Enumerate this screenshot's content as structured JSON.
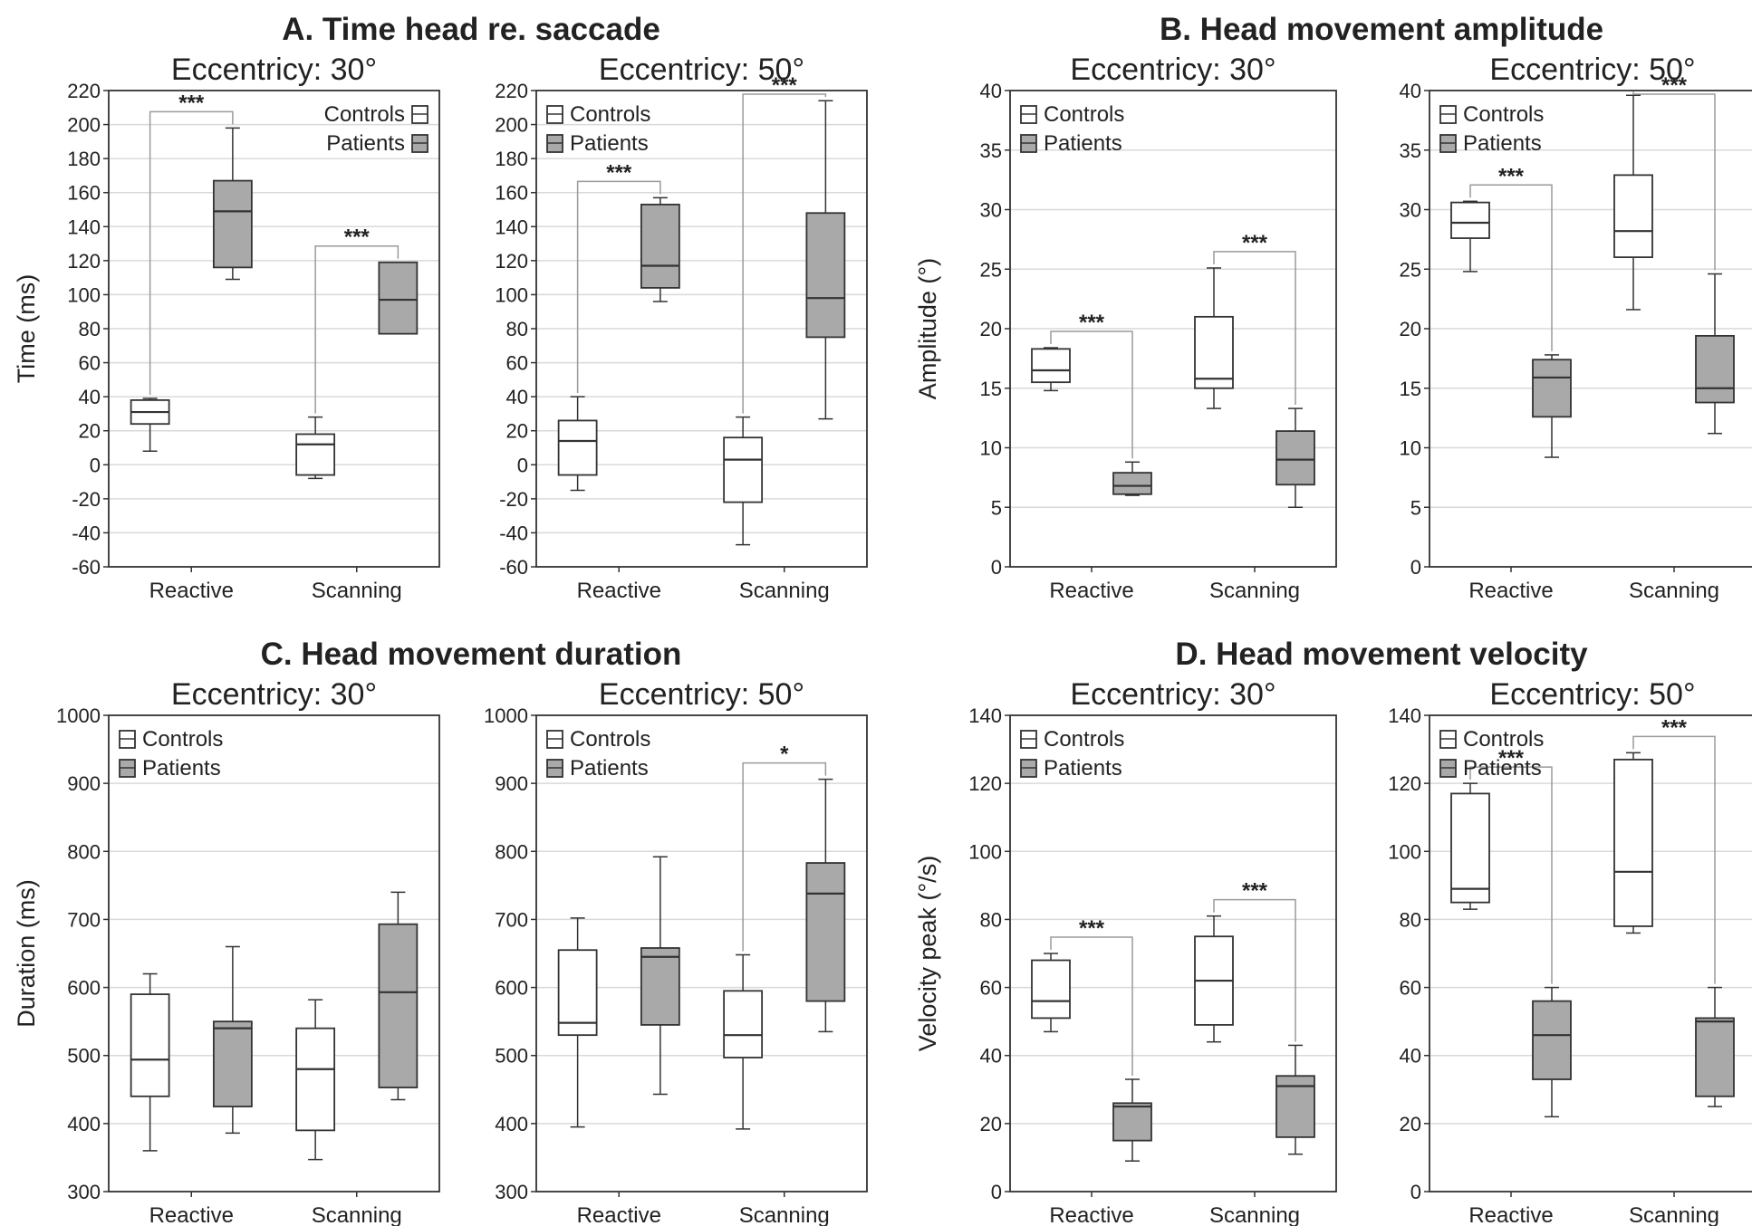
{
  "colors": {
    "controls_fill": "#ffffff",
    "patients_fill": "#a9a9a9",
    "grid": "#d9d9d9",
    "stroke": "#333333",
    "bracket": "#9a9a9a"
  },
  "legend_labels": {
    "controls": "Controls",
    "patients": "Patients"
  },
  "panel_titles": {
    "A": "A. Time head re. saccade",
    "B": "B. Head movement amplitude",
    "C": "C. Head movement duration",
    "D": "D. Head movement velocity"
  },
  "chart_data": [
    {
      "type": "box",
      "panel": "A",
      "subtitle": "Eccentricy: 30°",
      "ylabel": "Time (ms)",
      "ylim": [
        -60,
        220
      ],
      "yticks": [
        -60,
        -40,
        -20,
        0,
        20,
        40,
        60,
        80,
        100,
        120,
        140,
        160,
        180,
        200,
        220
      ],
      "categories": [
        "Reactive",
        "Scanning"
      ],
      "grid": true,
      "legend_position": "top-right",
      "series": [
        {
          "name": "Controls",
          "boxes": [
            [
              8,
              24,
              31,
              38,
              39
            ],
            [
              -8,
              -6,
              12,
              18,
              28
            ]
          ]
        },
        {
          "name": "Patients",
          "boxes": [
            [
              109,
              116,
              149,
              167,
              198
            ],
            [
              77,
              77,
              97,
              119,
              119
            ]
          ]
        }
      ],
      "significance": [
        {
          "category": "Reactive",
          "label": "***"
        },
        {
          "category": "Scanning",
          "label": "***"
        }
      ]
    },
    {
      "type": "box",
      "panel": "A",
      "subtitle": "Eccentricy: 50°",
      "ylabel": "",
      "ylim": [
        -60,
        220
      ],
      "yticks": [
        -60,
        -40,
        -20,
        0,
        20,
        40,
        60,
        80,
        100,
        120,
        140,
        160,
        180,
        200,
        220
      ],
      "categories": [
        "Reactive",
        "Scanning"
      ],
      "grid": true,
      "legend_position": "top-left",
      "series": [
        {
          "name": "Controls",
          "boxes": [
            [
              -15,
              -6,
              14,
              26,
              40
            ],
            [
              -47,
              -22,
              3,
              16,
              28
            ]
          ]
        },
        {
          "name": "Patients",
          "boxes": [
            [
              96,
              104,
              117,
              153,
              157
            ],
            [
              27,
              75,
              98,
              148,
              214
            ]
          ]
        }
      ],
      "significance": [
        {
          "category": "Reactive",
          "label": "***"
        },
        {
          "category": "Scanning",
          "label": "***"
        }
      ]
    },
    {
      "type": "box",
      "panel": "B",
      "subtitle": "Eccentricy: 30°",
      "ylabel": "Amplitude (°)",
      "ylim": [
        0,
        40
      ],
      "yticks": [
        0,
        5,
        10,
        15,
        20,
        25,
        30,
        35,
        40
      ],
      "categories": [
        "Reactive",
        "Scanning"
      ],
      "grid": true,
      "legend_position": "top-left",
      "series": [
        {
          "name": "Controls",
          "boxes": [
            [
              14.8,
              15.5,
              16.5,
              18.3,
              18.4
            ],
            [
              13.3,
              15,
              15.8,
              21,
              25.1
            ]
          ]
        },
        {
          "name": "Patients",
          "boxes": [
            [
              6,
              6.1,
              6.8,
              7.9,
              8.8
            ],
            [
              5,
              6.9,
              9,
              11.4,
              13.3
            ]
          ]
        }
      ],
      "significance": [
        {
          "category": "Reactive",
          "label": "***"
        },
        {
          "category": "Scanning",
          "label": "***"
        }
      ]
    },
    {
      "type": "box",
      "panel": "B",
      "subtitle": "Eccentricy: 50°",
      "ylabel": "",
      "ylim": [
        0,
        40
      ],
      "yticks": [
        0,
        5,
        10,
        15,
        20,
        25,
        30,
        35,
        40
      ],
      "categories": [
        "Reactive",
        "Scanning"
      ],
      "grid": true,
      "legend_position": "top-left",
      "series": [
        {
          "name": "Controls",
          "boxes": [
            [
              24.8,
              27.6,
              28.9,
              30.6,
              30.7
            ],
            [
              21.6,
              26,
              28.2,
              32.9,
              39.6
            ]
          ]
        },
        {
          "name": "Patients",
          "boxes": [
            [
              9.2,
              12.6,
              15.9,
              17.4,
              17.8
            ],
            [
              11.2,
              13.8,
              15,
              19.4,
              24.6
            ]
          ]
        }
      ],
      "significance": [
        {
          "category": "Reactive",
          "label": "***"
        },
        {
          "category": "Scanning",
          "label": "***"
        }
      ]
    },
    {
      "type": "box",
      "panel": "C",
      "subtitle": "Eccentricy: 30°",
      "ylabel": "Duration (ms)",
      "ylim": [
        300,
        1000
      ],
      "yticks": [
        300,
        400,
        500,
        600,
        700,
        800,
        900,
        1000
      ],
      "categories": [
        "Reactive",
        "Scanning"
      ],
      "grid": true,
      "legend_position": "top-left",
      "series": [
        {
          "name": "Controls",
          "boxes": [
            [
              360,
              440,
              494,
              590,
              620
            ],
            [
              347,
              390,
              480,
              540,
              582
            ]
          ]
        },
        {
          "name": "Patients",
          "boxes": [
            [
              386,
              425,
              540,
              550,
              660
            ],
            [
              435,
              453,
              593,
              693,
              740
            ]
          ]
        }
      ],
      "significance": []
    },
    {
      "type": "box",
      "panel": "C",
      "subtitle": "Eccentricy: 50°",
      "ylabel": "",
      "ylim": [
        300,
        1000
      ],
      "yticks": [
        300,
        400,
        500,
        600,
        700,
        800,
        900,
        1000
      ],
      "categories": [
        "Reactive",
        "Scanning"
      ],
      "grid": true,
      "legend_position": "top-left",
      "series": [
        {
          "name": "Controls",
          "boxes": [
            [
              395,
              530,
              548,
              655,
              702
            ],
            [
              392,
              497,
              530,
              595,
              648
            ]
          ]
        },
        {
          "name": "Patients",
          "boxes": [
            [
              443,
              545,
              645,
              658,
              792
            ],
            [
              535,
              580,
              738,
              783,
              906
            ]
          ]
        }
      ],
      "significance": [
        {
          "category": "Scanning",
          "label": "*"
        }
      ]
    },
    {
      "type": "box",
      "panel": "D",
      "subtitle": "Eccentricy: 30°",
      "ylabel": "Velocity peak (°/s)",
      "ylim": [
        0,
        140
      ],
      "yticks": [
        0,
        20,
        40,
        60,
        80,
        100,
        120,
        140
      ],
      "categories": [
        "Reactive",
        "Scanning"
      ],
      "grid": true,
      "legend_position": "top-left",
      "series": [
        {
          "name": "Controls",
          "boxes": [
            [
              47,
              51,
              56,
              68,
              70
            ],
            [
              44,
              49,
              62,
              75,
              81
            ]
          ]
        },
        {
          "name": "Patients",
          "boxes": [
            [
              9,
              15,
              25,
              26,
              33
            ],
            [
              11,
              16,
              31,
              34,
              43
            ]
          ]
        }
      ],
      "significance": [
        {
          "category": "Reactive",
          "label": "***"
        },
        {
          "category": "Scanning",
          "label": "***"
        }
      ]
    },
    {
      "type": "box",
      "panel": "D",
      "subtitle": "Eccentricy: 50°",
      "ylabel": "",
      "ylim": [
        0,
        140
      ],
      "yticks": [
        0,
        20,
        40,
        60,
        80,
        100,
        120,
        140
      ],
      "categories": [
        "Reactive",
        "Scanning"
      ],
      "grid": true,
      "legend_position": "top-left",
      "series": [
        {
          "name": "Controls",
          "boxes": [
            [
              83,
              85,
              89,
              117,
              120
            ],
            [
              76,
              78,
              94,
              127,
              129
            ]
          ]
        },
        {
          "name": "Patients",
          "boxes": [
            [
              22,
              33,
              46,
              56,
              60
            ],
            [
              25,
              28,
              50,
              51,
              60
            ]
          ]
        }
      ],
      "significance": [
        {
          "category": "Reactive",
          "label": "***"
        },
        {
          "category": "Scanning",
          "label": "***"
        }
      ]
    }
  ]
}
